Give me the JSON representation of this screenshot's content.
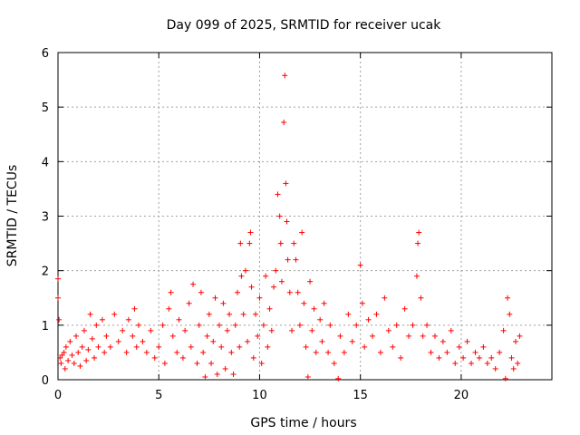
{
  "chart_data": {
    "type": "scatter",
    "title": "Day 099 of 2025, SRMTID for receiver ucak",
    "xlabel": "GPS time / hours",
    "ylabel": "SRMTID / TECUs",
    "xlim": [
      0,
      24.5
    ],
    "ylim": [
      0,
      6
    ],
    "xticks": [
      0,
      5,
      10,
      15,
      20
    ],
    "yticks": [
      0,
      1,
      2,
      3,
      4,
      5,
      6
    ],
    "xtick_labels": [
      "0",
      "5",
      "10",
      "15",
      "20"
    ],
    "ytick_labels": [
      "0",
      "1",
      "2",
      "3",
      "4",
      "5",
      "6"
    ],
    "grid": true,
    "marker": "+",
    "marker_color": "#ff0000",
    "series": [
      {
        "name": "SRMTID",
        "points": [
          [
            0.0,
            1.85
          ],
          [
            0.0,
            1.5
          ],
          [
            0.05,
            1.1
          ],
          [
            0.1,
            0.4
          ],
          [
            0.15,
            0.3
          ],
          [
            0.2,
            0.45
          ],
          [
            0.3,
            0.5
          ],
          [
            0.35,
            0.2
          ],
          [
            0.4,
            0.6
          ],
          [
            0.5,
            0.35
          ],
          [
            0.6,
            0.7
          ],
          [
            0.7,
            0.45
          ],
          [
            0.8,
            0.3
          ],
          [
            0.9,
            0.8
          ],
          [
            1.0,
            0.5
          ],
          [
            1.1,
            0.25
          ],
          [
            1.2,
            0.6
          ],
          [
            1.3,
            0.9
          ],
          [
            1.4,
            0.35
          ],
          [
            1.5,
            0.55
          ],
          [
            1.6,
            1.2
          ],
          [
            1.7,
            0.75
          ],
          [
            1.8,
            0.4
          ],
          [
            1.9,
            1.0
          ],
          [
            2.0,
            0.6
          ],
          [
            2.2,
            1.1
          ],
          [
            2.3,
            0.5
          ],
          [
            2.4,
            0.8
          ],
          [
            2.6,
            0.6
          ],
          [
            2.8,
            1.2
          ],
          [
            3.0,
            0.7
          ],
          [
            3.2,
            0.9
          ],
          [
            3.4,
            0.5
          ],
          [
            3.5,
            1.1
          ],
          [
            3.7,
            0.8
          ],
          [
            3.8,
            1.3
          ],
          [
            3.9,
            0.6
          ],
          [
            4.0,
            1.0
          ],
          [
            4.2,
            0.7
          ],
          [
            4.4,
            0.5
          ],
          [
            4.6,
            0.9
          ],
          [
            4.8,
            0.4
          ],
          [
            5.0,
            0.6
          ],
          [
            5.2,
            1.0
          ],
          [
            5.3,
            0.3
          ],
          [
            5.5,
            1.3
          ],
          [
            5.6,
            1.6
          ],
          [
            5.7,
            0.8
          ],
          [
            5.9,
            0.5
          ],
          [
            6.0,
            1.1
          ],
          [
            6.2,
            0.4
          ],
          [
            6.3,
            0.9
          ],
          [
            6.5,
            1.4
          ],
          [
            6.6,
            0.6
          ],
          [
            6.7,
            1.75
          ],
          [
            6.9,
            0.3
          ],
          [
            7.0,
            1.0
          ],
          [
            7.1,
            1.6
          ],
          [
            7.2,
            0.5
          ],
          [
            7.3,
            0.05
          ],
          [
            7.4,
            0.8
          ],
          [
            7.5,
            1.2
          ],
          [
            7.6,
            0.3
          ],
          [
            7.7,
            0.7
          ],
          [
            7.8,
            1.5
          ],
          [
            7.9,
            0.1
          ],
          [
            8.0,
            1.0
          ],
          [
            8.1,
            0.6
          ],
          [
            8.2,
            1.4
          ],
          [
            8.3,
            0.2
          ],
          [
            8.4,
            0.9
          ],
          [
            8.5,
            1.2
          ],
          [
            8.6,
            0.5
          ],
          [
            8.7,
            0.1
          ],
          [
            8.8,
            1.0
          ],
          [
            8.9,
            1.6
          ],
          [
            9.0,
            0.6
          ],
          [
            9.05,
            2.5
          ],
          [
            9.1,
            1.9
          ],
          [
            9.2,
            1.2
          ],
          [
            9.3,
            2.0
          ],
          [
            9.4,
            0.7
          ],
          [
            9.5,
            2.5
          ],
          [
            9.55,
            2.7
          ],
          [
            9.6,
            1.7
          ],
          [
            9.7,
            0.4
          ],
          [
            9.8,
            1.2
          ],
          [
            9.9,
            0.8
          ],
          [
            10.0,
            1.5
          ],
          [
            10.1,
            0.3
          ],
          [
            10.2,
            1.0
          ],
          [
            10.3,
            1.9
          ],
          [
            10.4,
            0.6
          ],
          [
            10.5,
            1.3
          ],
          [
            10.6,
            0.9
          ],
          [
            10.7,
            1.7
          ],
          [
            10.8,
            2.0
          ],
          [
            10.9,
            3.4
          ],
          [
            11.0,
            3.0
          ],
          [
            11.05,
            2.5
          ],
          [
            11.1,
            1.8
          ],
          [
            11.2,
            4.72
          ],
          [
            11.25,
            5.58
          ],
          [
            11.3,
            3.6
          ],
          [
            11.35,
            2.9
          ],
          [
            11.4,
            2.2
          ],
          [
            11.5,
            1.6
          ],
          [
            11.6,
            0.9
          ],
          [
            11.7,
            2.5
          ],
          [
            11.8,
            2.2
          ],
          [
            11.9,
            1.6
          ],
          [
            12.0,
            1.0
          ],
          [
            12.1,
            2.7
          ],
          [
            12.2,
            1.4
          ],
          [
            12.3,
            0.6
          ],
          [
            12.4,
            0.05
          ],
          [
            12.5,
            1.8
          ],
          [
            12.6,
            0.9
          ],
          [
            12.7,
            1.3
          ],
          [
            12.8,
            0.5
          ],
          [
            13.0,
            1.1
          ],
          [
            13.1,
            0.7
          ],
          [
            13.2,
            1.4
          ],
          [
            13.4,
            0.5
          ],
          [
            13.5,
            1.0
          ],
          [
            13.7,
            0.3
          ],
          [
            13.9,
            0.02
          ],
          [
            14.0,
            0.8
          ],
          [
            14.2,
            0.5
          ],
          [
            14.4,
            1.2
          ],
          [
            14.6,
            0.7
          ],
          [
            14.8,
            1.0
          ],
          [
            15.0,
            2.1
          ],
          [
            15.1,
            1.4
          ],
          [
            15.2,
            0.6
          ],
          [
            15.4,
            1.1
          ],
          [
            15.6,
            0.8
          ],
          [
            15.8,
            1.2
          ],
          [
            16.0,
            0.5
          ],
          [
            16.2,
            1.5
          ],
          [
            16.4,
            0.9
          ],
          [
            16.6,
            0.6
          ],
          [
            16.8,
            1.0
          ],
          [
            17.0,
            0.4
          ],
          [
            17.2,
            1.3
          ],
          [
            17.4,
            0.8
          ],
          [
            17.6,
            1.0
          ],
          [
            17.8,
            1.9
          ],
          [
            17.85,
            2.5
          ],
          [
            17.9,
            2.7
          ],
          [
            18.0,
            1.5
          ],
          [
            18.1,
            0.8
          ],
          [
            18.3,
            1.0
          ],
          [
            18.5,
            0.5
          ],
          [
            18.7,
            0.8
          ],
          [
            18.9,
            0.4
          ],
          [
            19.1,
            0.7
          ],
          [
            19.3,
            0.5
          ],
          [
            19.5,
            0.9
          ],
          [
            19.7,
            0.3
          ],
          [
            19.9,
            0.6
          ],
          [
            20.1,
            0.4
          ],
          [
            20.3,
            0.7
          ],
          [
            20.5,
            0.3
          ],
          [
            20.7,
            0.5
          ],
          [
            20.9,
            0.4
          ],
          [
            21.1,
            0.6
          ],
          [
            21.3,
            0.3
          ],
          [
            21.5,
            0.4
          ],
          [
            21.7,
            0.2
          ],
          [
            21.9,
            0.5
          ],
          [
            22.1,
            0.9
          ],
          [
            22.2,
            0.02
          ],
          [
            22.3,
            1.5
          ],
          [
            22.4,
            1.2
          ],
          [
            22.5,
            0.4
          ],
          [
            22.6,
            0.2
          ],
          [
            22.7,
            0.7
          ],
          [
            22.8,
            0.3
          ],
          [
            22.9,
            0.8
          ]
        ]
      }
    ]
  }
}
